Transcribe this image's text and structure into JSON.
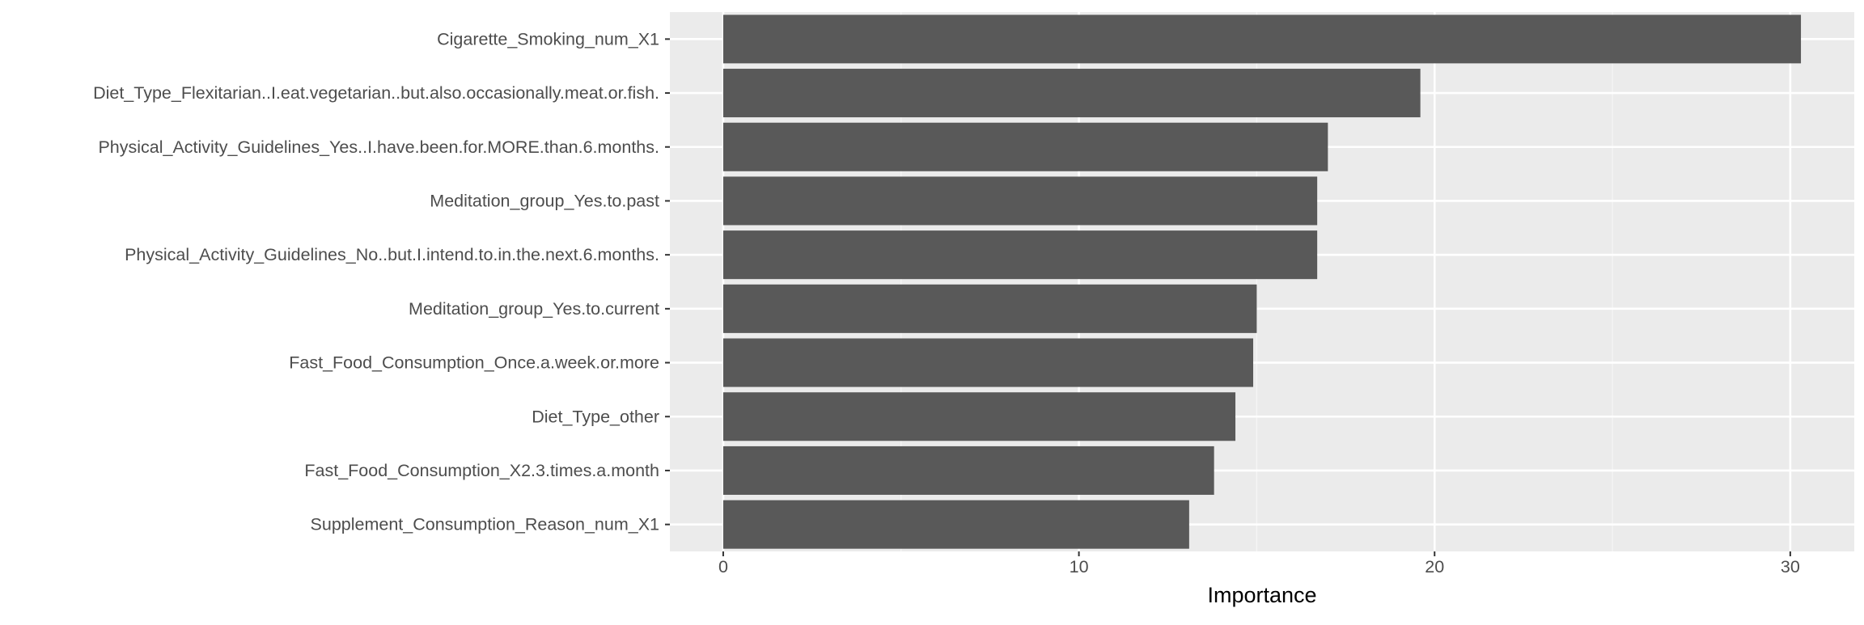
{
  "chart_data": {
    "type": "bar",
    "orientation": "horizontal",
    "categories": [
      "Cigarette_Smoking_num_X1",
      "Diet_Type_Flexitarian..I.eat.vegetarian..but.also.occasionally.meat.or.fish.",
      "Physical_Activity_Guidelines_Yes..I.have.been.for.MORE.than.6.months.",
      "Meditation_group_Yes.to.past",
      "Physical_Activity_Guidelines_No..but.I.intend.to.in.the.next.6.months.",
      "Meditation_group_Yes.to.current",
      "Fast_Food_Consumption_Once.a.week.or.more",
      "Diet_Type_other",
      "Fast_Food_Consumption_X2.3.times.a.month",
      "Supplement_Consumption_Reason_num_X1"
    ],
    "values": [
      30.3,
      19.6,
      17.0,
      16.7,
      16.7,
      15.0,
      14.9,
      14.4,
      13.8,
      13.1
    ],
    "xlabel": "Importance",
    "ylabel": "",
    "xlim": [
      -1.5,
      31.8
    ],
    "x_ticks": [
      0,
      10,
      20,
      30
    ],
    "grid": true,
    "legend": "none",
    "colors": {
      "bar": "#595959",
      "panel_background": "#ebebeb",
      "grid_major": "#ffffff",
      "grid_minor": "#f5f5f5",
      "tick_label": "#4d4d4d",
      "tick_mark": "#333333",
      "axis_title": "#000000"
    }
  }
}
